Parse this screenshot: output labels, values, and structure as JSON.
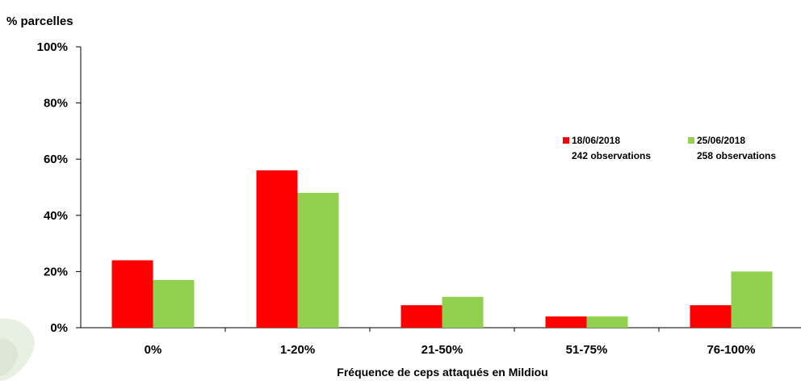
{
  "chart_data": {
    "type": "bar",
    "title": "",
    "ylabel": "% parcelles",
    "xlabel": "Fréquence de ceps attaqués en Mildiou",
    "ylim": [
      0,
      100
    ],
    "yticks": [
      "0%",
      "20%",
      "40%",
      "60%",
      "80%",
      "100%"
    ],
    "ytick_values": [
      0,
      20,
      40,
      60,
      80,
      100
    ],
    "categories": [
      "0%",
      "1-20%",
      "21-50%",
      "51-75%",
      "76-100%"
    ],
    "grid": false,
    "legend_position": "right",
    "series": [
      {
        "name": "18/06/2018",
        "subtitle": "242 observations",
        "color": "#ff0000",
        "values": [
          24,
          56,
          8,
          4,
          8
        ]
      },
      {
        "name": "25/06/2018",
        "subtitle": "258 observations",
        "color": "#92d050",
        "values": [
          17,
          48,
          11,
          4,
          20
        ]
      }
    ]
  }
}
